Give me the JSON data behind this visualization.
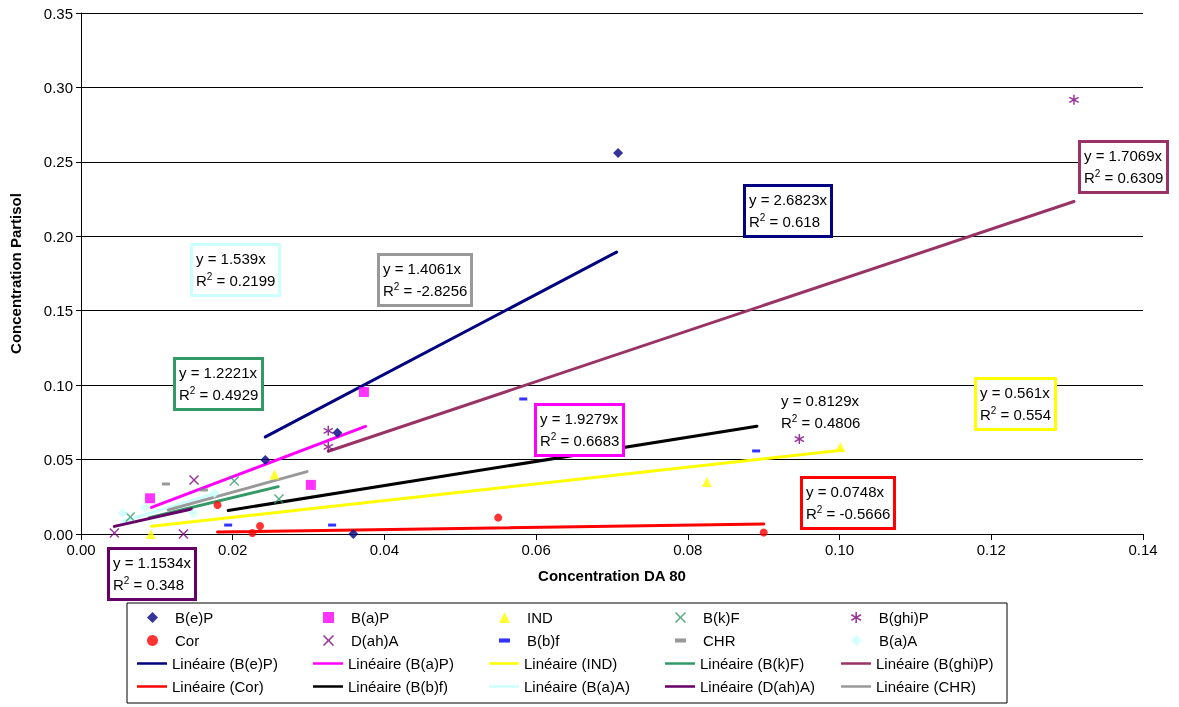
{
  "chart_data": {
    "type": "scatter",
    "xlabel": "Concentration DA 80",
    "ylabel": "Concentration Partisol",
    "xlim": [
      0,
      0.14
    ],
    "xticks": [
      {
        "value": 0,
        "label": "0.00"
      },
      0.02,
      0.04,
      0.06,
      0.08,
      {
        "value": 0.1,
        "label": "0.10"
      },
      0.12,
      0.14
    ],
    "ylim": [
      0,
      0.35
    ],
    "yticks": [
      {
        "value": 0,
        "label": "0.00"
      },
      0.05,
      {
        "value": 0.1,
        "label": "0.10"
      },
      0.15,
      {
        "value": 0.2,
        "label": "0.20"
      },
      0.25,
      {
        "value": 0.3,
        "label": "0.30"
      },
      0.35
    ],
    "grid": "y",
    "legend": "bottom",
    "series": [
      {
        "name": "B(e)P",
        "color": "#000080",
        "marker": "diamond",
        "x": [
          0.0243,
          0.0338,
          0.0359,
          0.0708
        ],
        "values": [
          0.0497,
          0.068,
          0,
          0.256
        ]
      },
      {
        "name": "B(a)P",
        "color": "#ff00ff",
        "marker": "square",
        "x": [
          0.0091,
          0.0303,
          0.0373
        ],
        "values": [
          0.024,
          0.033,
          0.0954
        ]
      },
      {
        "name": "IND",
        "color": "#ffff00",
        "marker": "triangle",
        "x": [
          0.0092,
          0.0255,
          0.0825,
          0.1001
        ],
        "values": [
          0,
          0.04,
          0.035,
          0.0585
        ]
      },
      {
        "name": "B(k)F",
        "color": "#339966",
        "marker": "cross",
        "x": [
          0.0065,
          0.0202,
          0.0261
        ],
        "values": [
          0.0114,
          0.0356,
          0.0235
        ]
      },
      {
        "name": "B(ghi)P",
        "color": "#800080",
        "marker": "star",
        "x": [
          0.0326,
          0.0326,
          0.0947,
          0.1309
        ],
        "values": [
          0.0585,
          0.0693,
          0.0638,
          0.2917
        ]
      },
      {
        "name": "Cor",
        "color": "#ff0000",
        "marker": "circle",
        "x": [
          0.018,
          0.0226,
          0.0236,
          0.055,
          0.09
        ],
        "values": [
          0.0195,
          0.0007,
          0.0054,
          0.011,
          0.001
        ]
      },
      {
        "name": "D(ah)A",
        "color": "#800080",
        "marker": "cross",
        "x": [
          0.0044,
          0.0135,
          0.0149
        ],
        "values": [
          0.0007,
          0,
          0.0363
        ]
      },
      {
        "name": "B(b)f",
        "color": "#0000ff",
        "x": [
          0.0194,
          0.0331,
          0.0583,
          0.089
        ],
        "values": [
          0.006,
          0.006,
          0.0907,
          0.0558
        ]
      },
      {
        "name": "CHR",
        "color": "#808080",
        "x": [
          0.0112,
          0.0162
        ],
        "values": [
          0.0336,
          0.0296
        ]
      },
      {
        "name": "B(a)A",
        "color": "#ccffff",
        "marker": "diamond",
        "x": [
          0.0055,
          0.0084,
          0.0148,
          0.0176
        ],
        "values": [
          0.0141,
          0.018,
          0.014,
          0.0276
        ]
      },
      {
        "name": "Linéaire (B(e)P)",
        "type": "line",
        "color": "#000080",
        "x": [
          0.0243,
          0.0706
        ],
        "values": [
          0.0652,
          0.1894
        ]
      },
      {
        "name": "Linéaire (B(a)P)",
        "type": "line",
        "color": "#ff00ff",
        "x": [
          0.0093,
          0.0375
        ],
        "values": [
          0.0179,
          0.0723
        ]
      },
      {
        "name": "Linéaire (IND)",
        "type": "line",
        "color": "#ffff00",
        "x": [
          0.0093,
          0.1003
        ],
        "values": [
          0.0052,
          0.0563
        ]
      },
      {
        "name": "Linéaire (B(k)F)",
        "type": "line",
        "color": "#339966",
        "x": [
          0.009,
          0.026
        ],
        "values": [
          0.011,
          0.0318
        ]
      },
      {
        "name": "Linéaire (B(ghi)P)",
        "type": "line",
        "color": "#993366",
        "x": [
          0.0326,
          0.1309
        ],
        "values": [
          0.0556,
          0.2234
        ]
      },
      {
        "name": "Linéaire (Cor)",
        "type": "line",
        "color": "#ff0000",
        "x": [
          0.018,
          0.09
        ],
        "values": [
          0.0013,
          0.0067
        ]
      },
      {
        "name": "Linéaire (B(b)f)",
        "type": "line",
        "color": "#000000",
        "x": [
          0.0194,
          0.0891
        ],
        "values": [
          0.0158,
          0.0724
        ]
      },
      {
        "name": "Linéaire (B(a)A)",
        "type": "line",
        "color": "#ccffff",
        "x": [
          0.0055,
          0.0176
        ],
        "values": [
          0.0085,
          0.0271
        ]
      },
      {
        "name": "Linéaire (D(ah)A)",
        "type": "line",
        "color": "#660066",
        "x": [
          0.0044,
          0.0146
        ],
        "values": [
          0.0051,
          0.0168
        ]
      },
      {
        "name": "Linéaire (CHR)",
        "type": "line",
        "color": "#999999",
        "x": [
          0.0115,
          0.0298
        ],
        "values": [
          0.0162,
          0.0419
        ]
      }
    ],
    "annotations": [
      "y = 1.539x\nR$^{2}$ = 0.2199",
      "y = 1.4061x\nR$^{2}$ = -2.8256",
      "y = 2.6823x\nR$^{2}$ = 0.618",
      "y = 1.7069x\nR$^{2}$ = 0.6309",
      "y = 1.2221x\nR$^{2}$ = 0.4929",
      "y = 1.9279x\nR$^{2}$ = 0.6683",
      "y = 0.8129x\nR$^{2}$ = 0.4806",
      "y = 0.561x\nR$^{2}$ = 0.554",
      "y = 0.0748x\nR$^{2}$ = -0.5666",
      "y = 1.1534x\nR$^{2}$ = 0.348"
    ]
  }
}
